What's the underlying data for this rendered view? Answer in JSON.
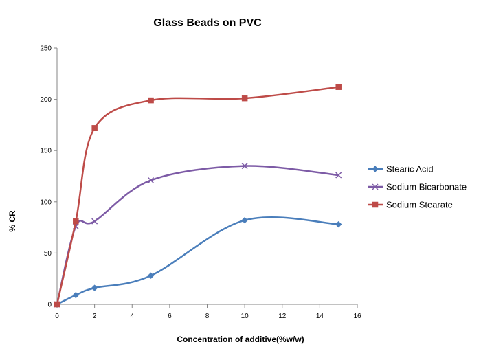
{
  "chart_data": {
    "type": "line",
    "title": "Glass Beads on PVC",
    "xlabel": "Concentration of additive(%w/w)",
    "ylabel": "% CR",
    "xlim": [
      0,
      16
    ],
    "ylim": [
      0,
      250
    ],
    "x_ticks": [
      0,
      2,
      4,
      6,
      8,
      10,
      12,
      14,
      16
    ],
    "y_ticks": [
      0,
      50,
      100,
      150,
      200,
      250
    ],
    "x_tick_labels": [
      "0",
      "2",
      "4",
      "6",
      "8",
      "10",
      "12",
      "14",
      "16"
    ],
    "y_tick_labels": [
      "0",
      "50",
      "100",
      "150",
      "200",
      "250"
    ],
    "grid": false,
    "legend_position": "right",
    "smooth": true,
    "series": [
      {
        "name": "Stearic Acid",
        "color": "#4a7ebb",
        "marker": "diamond",
        "x": [
          0,
          1,
          2,
          5,
          10,
          15
        ],
        "y": [
          0,
          9,
          16,
          28,
          82,
          78
        ]
      },
      {
        "name": "Sodium Bicarbonate",
        "color": "#7d5ba6",
        "marker": "x",
        "x": [
          0,
          1,
          2,
          5,
          10,
          15
        ],
        "y": [
          0,
          76,
          81,
          121,
          135,
          126
        ]
      },
      {
        "name": "Sodium Stearate",
        "color": "#be4b48",
        "marker": "square",
        "x": [
          0,
          1,
          2,
          5,
          10,
          15
        ],
        "y": [
          0,
          81,
          172,
          199,
          201,
          212
        ]
      }
    ]
  }
}
